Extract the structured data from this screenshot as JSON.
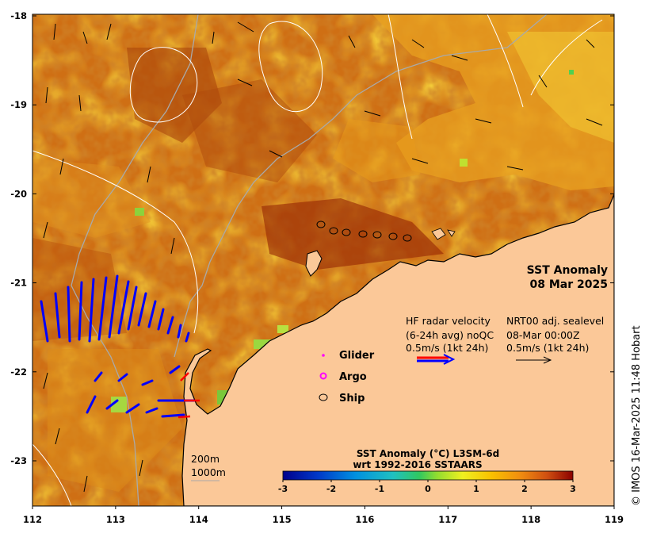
{
  "map": {
    "lon_ticks": [
      "112",
      "113",
      "114",
      "115",
      "116",
      "117",
      "118",
      "119"
    ],
    "lat_ticks": [
      "-18",
      "-19",
      "-20",
      "-21",
      "-22",
      "-23"
    ],
    "title_line1": "SST Anomaly",
    "title_line2": "08 Mar 2025",
    "hf_radar": {
      "line1": "HF radar velocity",
      "line2": "(6-24h avg) noQC",
      "line3": "0.5m/s (1kt 24h)"
    },
    "sealevel": {
      "line1": "NRT00 adj. sealevel",
      "line2": "08-Mar 00:00Z",
      "line3": "0.5m/s (1kt 24h)"
    },
    "platforms": [
      {
        "label": "Glider",
        "color": "#ff00ff"
      },
      {
        "label": "Argo",
        "color": "#ff00ff"
      },
      {
        "label": "Ship",
        "color": "#000000"
      }
    ],
    "depth_contours": [
      "200m",
      "1000m"
    ],
    "colorbar": {
      "title_line1": "SST Anomaly (°C) L3SM-6d",
      "title_line2": "wrt 1992-2016 SSTAARS",
      "ticks": [
        "-3",
        "-2",
        "-1",
        "0",
        "1",
        "2",
        "3"
      ],
      "range": [
        -3,
        3
      ]
    },
    "credit": "© IMOS 16-Mar-2025 11:48 Hobart",
    "colors": {
      "land": "#fbc898",
      "sst_base": "#cf6f14",
      "hf_radar_vector": "#0000ff",
      "sealevel_vector": "#000000",
      "sealevel_contour": "#ffffff",
      "bathymetry": "#a9a9a9"
    }
  }
}
